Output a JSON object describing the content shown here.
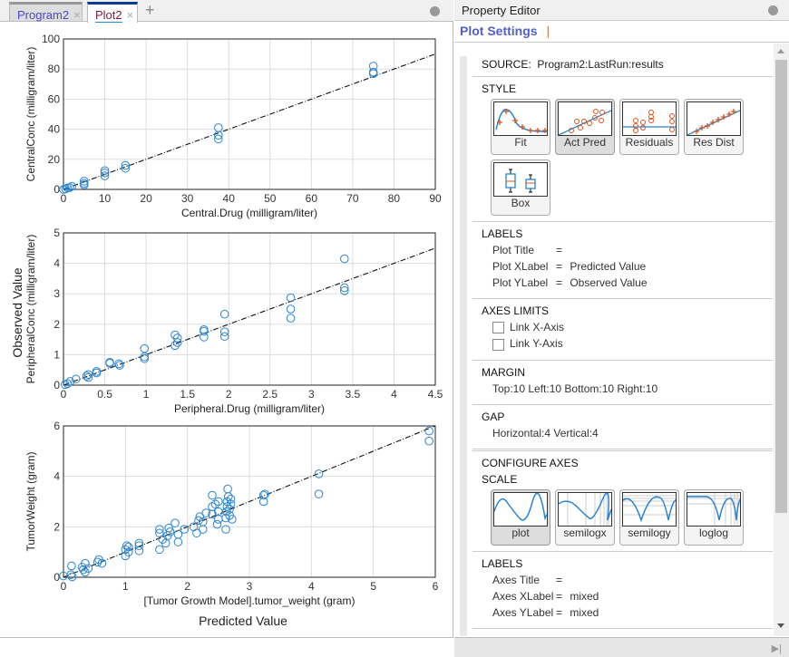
{
  "tabs": [
    {
      "label": "Program2",
      "close": "×"
    },
    {
      "label": "Plot2",
      "close": "×"
    }
  ],
  "add_tab": "+",
  "figure": {
    "ylabel": "Observed Value",
    "xlabel": "Predicted Value"
  },
  "chart_data": [
    {
      "type": "scatter",
      "xlabel": "Central.Drug (milligram/liter)",
      "ylabel": "CentralConc (milligram/liter)",
      "xlim": [
        0,
        90
      ],
      "ylim": [
        0,
        100
      ],
      "xticks": [
        0,
        10,
        20,
        30,
        40,
        50,
        60,
        70,
        80,
        90
      ],
      "yticks": [
        0,
        20,
        40,
        60,
        80,
        100
      ],
      "grid": true,
      "reference_line": "y=x",
      "points": [
        [
          0,
          0
        ],
        [
          0.5,
          0.3
        ],
        [
          1,
          1
        ],
        [
          1.5,
          1.2
        ],
        [
          2,
          2
        ],
        [
          5,
          4
        ],
        [
          5,
          5.5
        ],
        [
          5,
          3
        ],
        [
          10,
          9
        ],
        [
          10,
          11
        ],
        [
          10,
          12.5
        ],
        [
          15,
          14
        ],
        [
          15,
          16
        ],
        [
          37.5,
          41
        ],
        [
          37.5,
          36
        ],
        [
          37.5,
          33.5
        ],
        [
          75,
          82
        ],
        [
          75,
          78
        ],
        [
          75,
          77
        ]
      ]
    },
    {
      "type": "scatter",
      "xlabel": "Peripheral.Drug (milligram/liter)",
      "ylabel": "PeripheralConc (milligram/liter)",
      "xlim": [
        0,
        4.5
      ],
      "ylim": [
        0,
        5
      ],
      "xticks": [
        0,
        0.5,
        1,
        1.5,
        2,
        2.5,
        3,
        3.5,
        4,
        4.5
      ],
      "yticks": [
        0,
        1,
        2,
        3,
        4,
        5
      ],
      "grid": true,
      "reference_line": "y=x",
      "points": [
        [
          0.02,
          0.02
        ],
        [
          0.05,
          0.05
        ],
        [
          0.08,
          0.12
        ],
        [
          0.15,
          0.2
        ],
        [
          0.28,
          0.3
        ],
        [
          0.3,
          0.25
        ],
        [
          0.3,
          0.35
        ],
        [
          0.4,
          0.45
        ],
        [
          0.4,
          0.4
        ],
        [
          0.56,
          0.75
        ],
        [
          0.56,
          0.72
        ],
        [
          0.67,
          0.7
        ],
        [
          0.68,
          0.65
        ],
        [
          0.98,
          1.2
        ],
        [
          0.98,
          0.93
        ],
        [
          0.98,
          0.87
        ],
        [
          1.35,
          1.65
        ],
        [
          1.38,
          1.55
        ],
        [
          1.38,
          1.4
        ],
        [
          1.35,
          1.3
        ],
        [
          1.7,
          1.82
        ],
        [
          1.7,
          1.77
        ],
        [
          1.7,
          1.58
        ],
        [
          1.95,
          2.33
        ],
        [
          1.95,
          1.75
        ],
        [
          1.95,
          1.6
        ],
        [
          2.75,
          2.87
        ],
        [
          2.75,
          2.5
        ],
        [
          2.75,
          2.2
        ],
        [
          3.4,
          4.15
        ],
        [
          3.4,
          3.2
        ],
        [
          3.4,
          3.1
        ]
      ]
    },
    {
      "type": "scatter",
      "xlabel": "[Tumor Growth Model].tumor_weight (gram)",
      "ylabel": "TumorWeight (gram)",
      "xlim": [
        0,
        6
      ],
      "ylim": [
        0,
        6
      ],
      "xticks": [
        0,
        1,
        2,
        3,
        4,
        5,
        6
      ],
      "yticks": [
        0,
        2,
        4,
        6
      ],
      "grid": true,
      "reference_line": "y=x",
      "points": [
        [
          0,
          0.05
        ],
        [
          0.12,
          0.1
        ],
        [
          0.13,
          0.45
        ],
        [
          0.14,
          0.02
        ],
        [
          0.3,
          0.4
        ],
        [
          0.32,
          0.3
        ],
        [
          0.35,
          0.2
        ],
        [
          0.35,
          0.55
        ],
        [
          0.4,
          0.35
        ],
        [
          0.55,
          0.6
        ],
        [
          0.57,
          0.7
        ],
        [
          0.62,
          0.55
        ],
        [
          1,
          0.85
        ],
        [
          1,
          1.1
        ],
        [
          1.02,
          1.25
        ],
        [
          1.05,
          1.0
        ],
        [
          1.05,
          1.2
        ],
        [
          1.22,
          1.05
        ],
        [
          1.22,
          1.25
        ],
        [
          1.22,
          1.35
        ],
        [
          1.55,
          1.1
        ],
        [
          1.55,
          1.75
        ],
        [
          1.55,
          1.9
        ],
        [
          1.6,
          1.5
        ],
        [
          1.65,
          1.35
        ],
        [
          1.68,
          1.65
        ],
        [
          1.7,
          1.95
        ],
        [
          1.72,
          1.8
        ],
        [
          1.8,
          2.15
        ],
        [
          1.85,
          1.4
        ],
        [
          1.85,
          1.7
        ],
        [
          1.95,
          1.9
        ],
        [
          2.1,
          2.0
        ],
        [
          2.15,
          1.75
        ],
        [
          2.18,
          2.25
        ],
        [
          2.2,
          2.4
        ],
        [
          2.25,
          1.9
        ],
        [
          2.25,
          2.2
        ],
        [
          2.3,
          2.55
        ],
        [
          2.4,
          2.5
        ],
        [
          2.4,
          2.8
        ],
        [
          2.4,
          3.25
        ],
        [
          2.45,
          2.9
        ],
        [
          2.48,
          2.1
        ],
        [
          2.5,
          2.3
        ],
        [
          2.5,
          2.6
        ],
        [
          2.5,
          3.0
        ],
        [
          2.62,
          1.9
        ],
        [
          2.62,
          2.35
        ],
        [
          2.63,
          2.6
        ],
        [
          2.64,
          2.8
        ],
        [
          2.64,
          3.0
        ],
        [
          2.65,
          3.5
        ],
        [
          2.66,
          3.2
        ],
        [
          2.68,
          2.45
        ],
        [
          2.68,
          2.7
        ],
        [
          2.7,
          2.9
        ],
        [
          2.7,
          3.1
        ],
        [
          2.72,
          2.3
        ],
        [
          3.23,
          3.0
        ],
        [
          3.23,
          3.25
        ],
        [
          3.25,
          3.3
        ],
        [
          4.12,
          4.1
        ],
        [
          4.12,
          3.3
        ],
        [
          5.9,
          5.8
        ],
        [
          5.9,
          5.4
        ]
      ]
    }
  ],
  "property_editor": {
    "title": "Property Editor",
    "tab": "Plot Settings",
    "tab_sep": "|",
    "source_label": "SOURCE:",
    "source_value": "Program2:LastRun:results",
    "style": {
      "heading": "STYLE",
      "buttons": [
        "Fit",
        "Act Pred",
        "Residuals",
        "Res Dist",
        "Box"
      ],
      "selected": "Act Pred"
    },
    "labels": {
      "heading": "LABELS",
      "rows": [
        {
          "k": "Plot Title",
          "v": ""
        },
        {
          "k": "Plot XLabel",
          "v": "Predicted Value"
        },
        {
          "k": "Plot YLabel",
          "v": "Observed Value"
        }
      ],
      "eq": "="
    },
    "axes_limits": {
      "heading": "AXES LIMITS",
      "link_x": "Link X-Axis",
      "link_y": "Link Y-Axis",
      "link_x_checked": false,
      "link_y_checked": false
    },
    "margin": {
      "heading": "MARGIN",
      "value": "Top:10 Left:10 Bottom:10 Right:10"
    },
    "gap": {
      "heading": "GAP",
      "value": "Horizontal:4 Vertical:4"
    },
    "configure": {
      "heading": "CONFIGURE AXES",
      "scale_heading": "SCALE",
      "buttons": [
        "plot",
        "semilogx",
        "semilogy",
        "loglog"
      ],
      "selected": "plot"
    },
    "axes_labels": {
      "heading": "LABELS",
      "rows": [
        {
          "k": "Axes Title",
          "v": ""
        },
        {
          "k": "Axes XLabel",
          "v": "mixed"
        },
        {
          "k": "Axes YLabel",
          "v": "mixed"
        }
      ]
    }
  },
  "colors": {
    "marker": "#2a84d2",
    "accent": "#5060c8",
    "fit": "#d95319"
  }
}
